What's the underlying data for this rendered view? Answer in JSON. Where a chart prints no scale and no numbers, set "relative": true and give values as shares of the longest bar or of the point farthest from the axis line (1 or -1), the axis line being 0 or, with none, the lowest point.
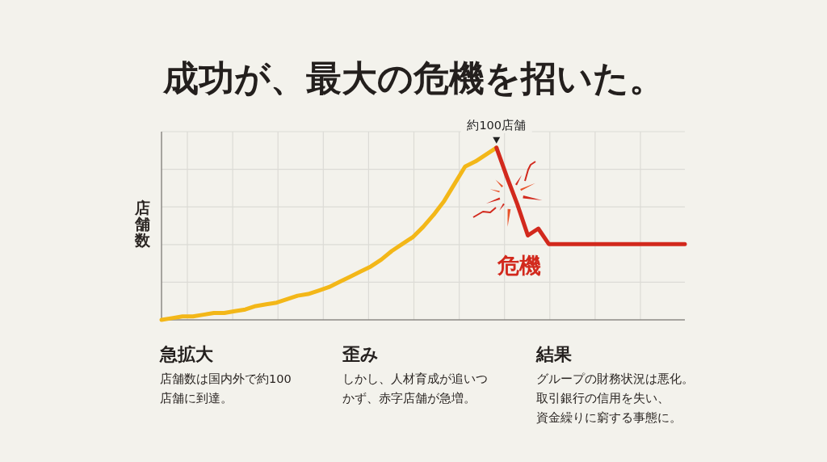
{
  "chart_data": {
    "type": "line",
    "title": "成功が、最大の危機を招いた。",
    "ylabel": "店舗数",
    "relative": true,
    "grid": true,
    "line_style": "solid",
    "categories": [
      null,
      null,
      null,
      null,
      null,
      null,
      null,
      null,
      null,
      null,
      null,
      null,
      null,
      null,
      null,
      null,
      null,
      null,
      null,
      null,
      null,
      null,
      null,
      null,
      null,
      null,
      null,
      null,
      null,
      null,
      null,
      null,
      null,
      null,
      null,
      null,
      null,
      null,
      null,
      null,
      null,
      null,
      null,
      null,
      null,
      null,
      null,
      null,
      null,
      null,
      null
    ],
    "series": [
      {
        "color": "#f3b718",
        "values": [
          0,
          0.01,
          0.02,
          0.02,
          0.03,
          0.04,
          0.04,
          0.05,
          0.06,
          0.08,
          0.09,
          0.1,
          0.12,
          0.14,
          0.15,
          0.17,
          0.19,
          0.22,
          0.25,
          0.28,
          0.31,
          0.35,
          0.4,
          0.44,
          0.48,
          0.54,
          0.61,
          0.69,
          0.79,
          0.89,
          0.92,
          0.96,
          1,
          null,
          null,
          null,
          null,
          null,
          null,
          null,
          null,
          null,
          null,
          null,
          null,
          null,
          null,
          null,
          null,
          null,
          null
        ]
      },
      {
        "name": "危機",
        "color": "#d2291d",
        "values": [
          null,
          null,
          null,
          null,
          null,
          null,
          null,
          null,
          null,
          null,
          null,
          null,
          null,
          null,
          null,
          null,
          null,
          null,
          null,
          null,
          null,
          null,
          null,
          null,
          null,
          null,
          null,
          null,
          null,
          null,
          null,
          null,
          1,
          0.83,
          0.67,
          0.49,
          0.53,
          0.44,
          0.44,
          0.44,
          0.44,
          0.44,
          0.44,
          0.44,
          0.44,
          0.44,
          0.44,
          0.44,
          0.44,
          0.44,
          0.44
        ]
      }
    ],
    "annotations": [
      {
        "text": "約100店舗",
        "y": 1
      },
      "急拡大",
      "店舗数は国内外で約100店舗に到達。",
      "歪み",
      "しかし、人材育成が追いつかず、赤字店舗が急増。",
      "結果",
      "グループの財務状況は悪化。取引銀行の信用を失い、資金繰りに窮する事態に。"
    ]
  }
}
